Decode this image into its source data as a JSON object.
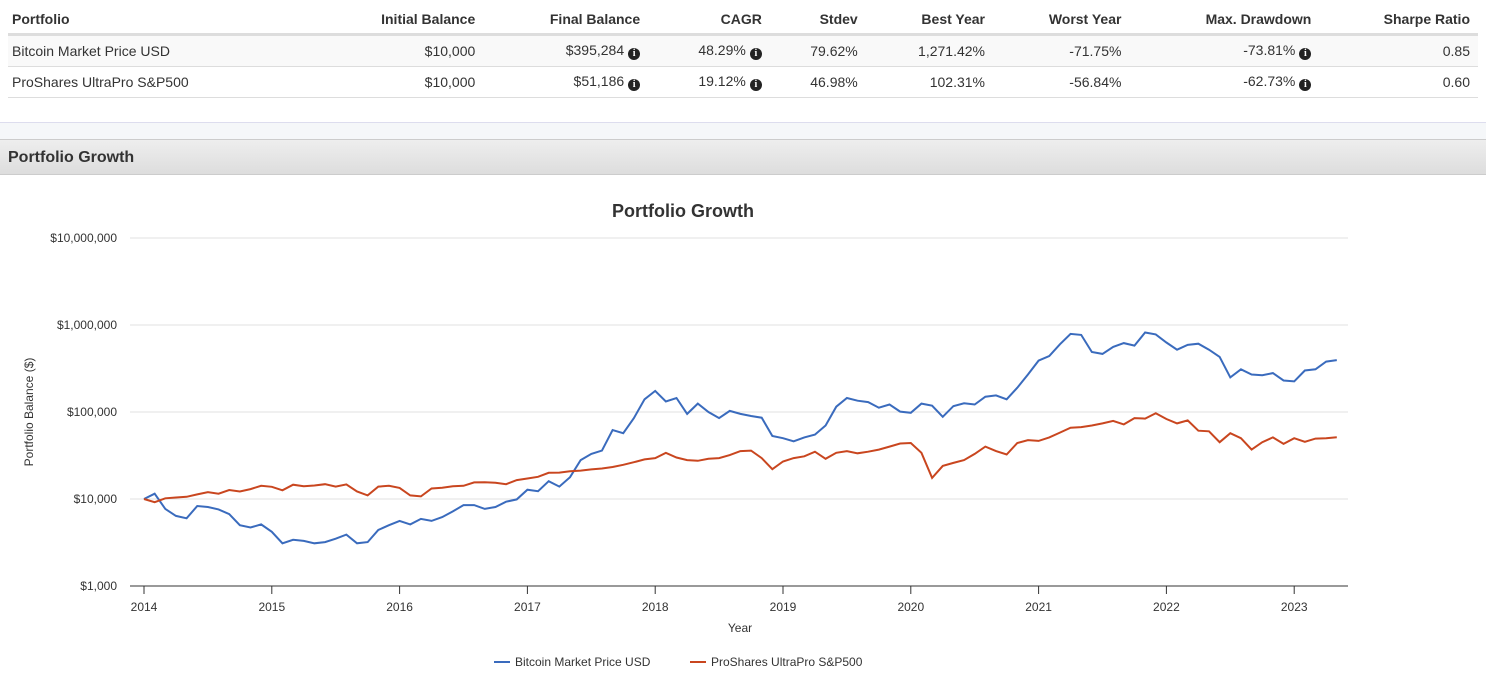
{
  "table": {
    "headers": [
      "Portfolio",
      "Initial Balance",
      "Final Balance",
      "CAGR",
      "Stdev",
      "Best Year",
      "Worst Year",
      "Max. Drawdown",
      "Sharpe Ratio"
    ],
    "rows": [
      [
        "Bitcoin Market Price USD",
        "$10,000",
        "$395,284",
        "48.29%",
        "79.62%",
        "1,271.42%",
        "-71.75%",
        "-73.81%",
        "0.85"
      ],
      [
        "ProShares UltraPro S&P500",
        "$10,000",
        "$51,186",
        "19.12%",
        "46.98%",
        "102.31%",
        "-56.84%",
        "-62.73%",
        "0.60"
      ]
    ],
    "info_icon": "info-circle-icon"
  },
  "section_title": "Portfolio Growth",
  "chart_data": {
    "type": "line",
    "title": "Portfolio Growth",
    "xlabel": "Year",
    "ylabel": "Portfolio Balance ($)",
    "yscale": "log",
    "ylim": [
      1000,
      10000000
    ],
    "yticks": [
      "$1,000",
      "$10,000",
      "$100,000",
      "$1,000,000",
      "$10,000,000"
    ],
    "xticks": [
      "2014",
      "2015",
      "2016",
      "2017",
      "2018",
      "2019",
      "2020",
      "2021",
      "2022",
      "2023"
    ],
    "x_start": "2014-01",
    "x_frequency": "monthly",
    "grid": true,
    "legend": "bottom",
    "series": [
      {
        "name": "Bitcoin Market Price USD",
        "color": "#3a6bbd",
        "values": [
          10000,
          11500,
          7700,
          6400,
          6000,
          8300,
          8100,
          7600,
          6700,
          5000,
          4700,
          5100,
          4200,
          3100,
          3400,
          3300,
          3100,
          3200,
          3500,
          3900,
          3100,
          3200,
          4400,
          5000,
          5600,
          5100,
          5900,
          5600,
          6200,
          7200,
          8500,
          8500,
          7700,
          8100,
          9300,
          9900,
          12800,
          12300,
          16000,
          13900,
          17800,
          28000,
          33000,
          36000,
          62000,
          57000,
          85000,
          140000,
          175000,
          132000,
          145000,
          95000,
          125000,
          100000,
          85000,
          103000,
          95000,
          90000,
          86000,
          53000,
          50000,
          46000,
          51000,
          55000,
          70000,
          115000,
          145000,
          135000,
          130000,
          112000,
          122000,
          101000,
          98000,
          125000,
          118000,
          88000,
          117000,
          126000,
          122000,
          150000,
          155000,
          140000,
          190000,
          270000,
          390000,
          440000,
          600000,
          790000,
          770000,
          490000,
          465000,
          560000,
          620000,
          580000,
          820000,
          780000,
          630000,
          520000,
          590000,
          610000,
          520000,
          430000,
          250000,
          310000,
          270000,
          265000,
          280000,
          230000,
          225000,
          300000,
          310000,
          380000,
          395284
        ]
      },
      {
        "name": "ProShares UltraPro S&P500",
        "color": "#c9461f",
        "values": [
          10000,
          9200,
          10200,
          10400,
          10600,
          11300,
          12000,
          11500,
          12700,
          12200,
          13000,
          14200,
          13800,
          12600,
          14600,
          14000,
          14300,
          14800,
          13900,
          14700,
          12200,
          11000,
          13900,
          14200,
          13400,
          11000,
          10700,
          13200,
          13500,
          14000,
          14200,
          15500,
          15600,
          15400,
          14800,
          16500,
          17200,
          18000,
          20000,
          20100,
          20800,
          21200,
          21900,
          22400,
          23300,
          24700,
          26500,
          28500,
          29500,
          34000,
          30000,
          28000,
          27500,
          29000,
          29500,
          32000,
          35500,
          36000,
          29500,
          22000,
          27000,
          29500,
          31000,
          35000,
          29000,
          34000,
          35500,
          33500,
          35000,
          37000,
          40000,
          43500,
          44000,
          34000,
          17500,
          24000,
          26000,
          28000,
          33000,
          40000,
          35500,
          32500,
          44000,
          47500,
          46500,
          51000,
          58000,
          66000,
          67000,
          70000,
          74000,
          79000,
          72000,
          85000,
          84000,
          97000,
          83000,
          74000,
          80000,
          61000,
          60000,
          45000,
          57000,
          50000,
          37000,
          45000,
          51000,
          43000,
          50000,
          45500,
          49500,
          50000,
          51186
        ]
      }
    ]
  }
}
